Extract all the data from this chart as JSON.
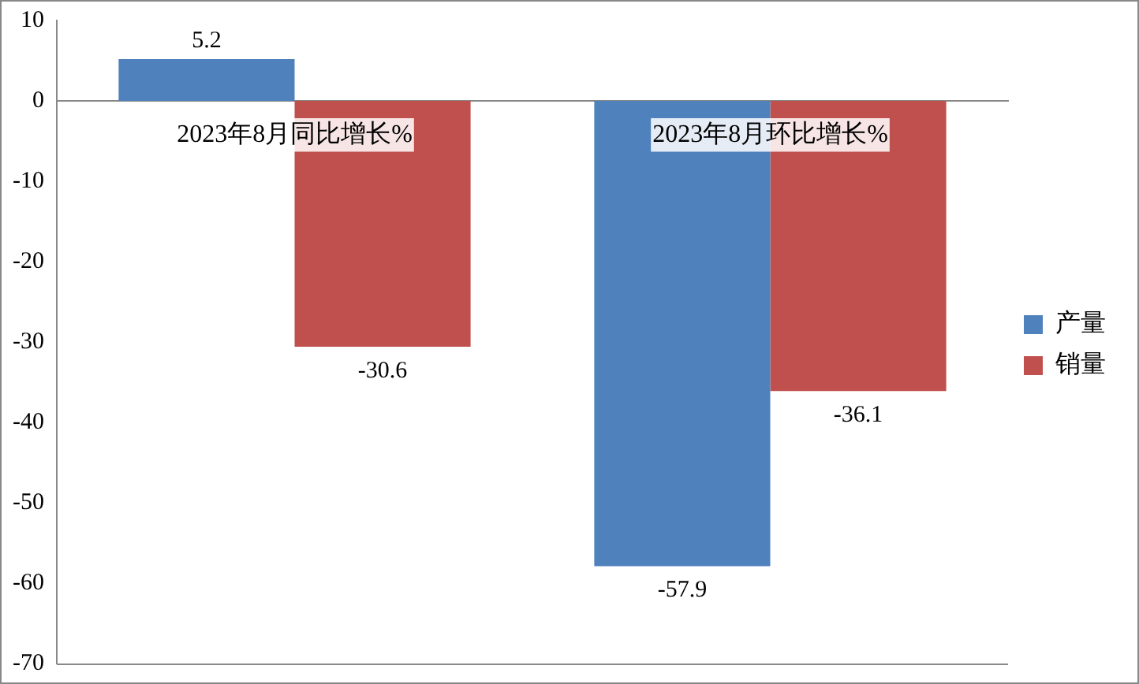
{
  "chart_data": {
    "type": "bar",
    "categories": [
      "2023年8月同比增长%",
      "2023年8月环比增长%"
    ],
    "series": [
      {
        "name": "产量",
        "color": "#4f81bd",
        "values": [
          5.2,
          -57.9
        ]
      },
      {
        "name": "销量",
        "color": "#c0504d",
        "values": [
          -30.6,
          -36.1
        ]
      }
    ],
    "ylim": [
      -70,
      10
    ],
    "yticks": [
      10,
      0,
      -10,
      -20,
      -30,
      -40,
      -50,
      -60,
      -70
    ],
    "grid": false,
    "legend": "right",
    "data_labels": true
  }
}
